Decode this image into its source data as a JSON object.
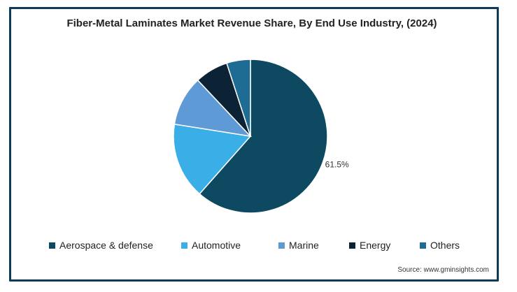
{
  "chart_data": {
    "type": "pie",
    "title": "Fiber-Metal Laminates Market Revenue Share, By End Use Industry, (2024)",
    "categories": [
      "Aerospace & defense",
      "Automotive",
      "Marine",
      "Energy",
      "Others"
    ],
    "values": [
      61.5,
      16.0,
      10.5,
      7.0,
      5.0
    ],
    "data_labels": [
      "61.5%",
      "",
      "",
      "",
      ""
    ],
    "colors": [
      "#0d4a62",
      "#3aaee6",
      "#5e9bd6",
      "#0b2335",
      "#1e6b93"
    ],
    "legend_position": "bottom",
    "start_angle": "12 o'clock",
    "direction": "clockwise"
  },
  "source": "Source: www.gminsights.com"
}
